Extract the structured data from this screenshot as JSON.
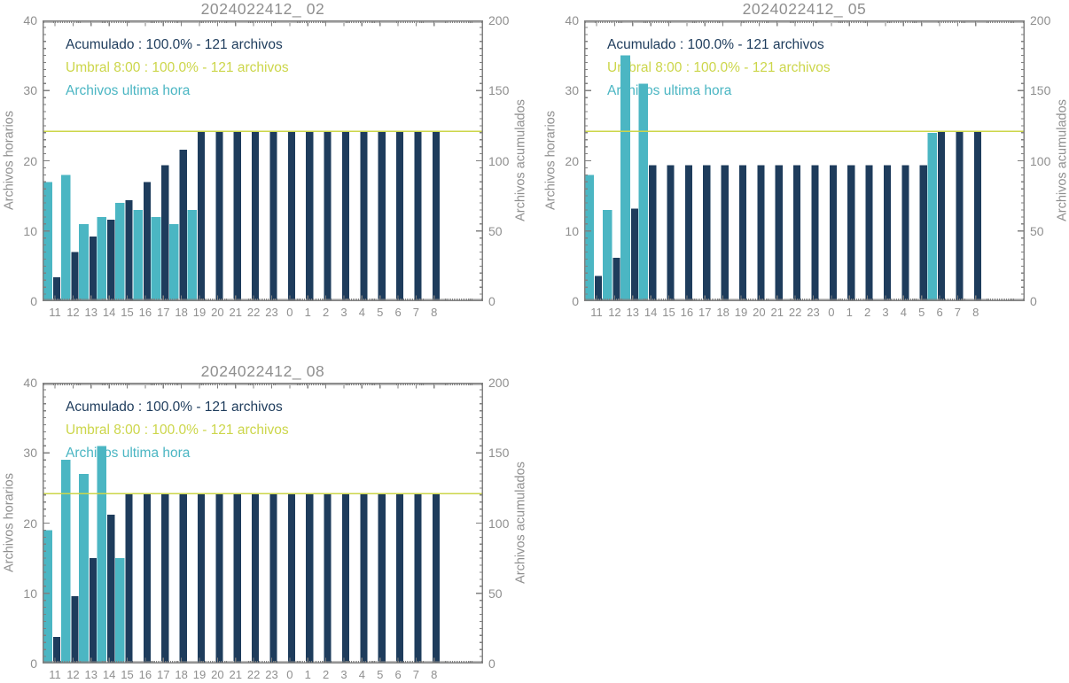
{
  "colors": {
    "navy": "#1e3c5c",
    "teal": "#4bb6c3",
    "threshold": "#ccd64a",
    "tick_text": "#8f8f8f",
    "frame": "#808080"
  },
  "chart_data": [
    {
      "type": "bar",
      "title": "2024022412_ 02",
      "categories": [
        "11",
        "12",
        "13",
        "14",
        "15",
        "16",
        "17",
        "18",
        "19",
        "20",
        "21",
        "22",
        "23",
        "0",
        "1",
        "2",
        "3",
        "4",
        "5",
        "6",
        "7",
        "8"
      ],
      "series": [
        {
          "name": "Archivos ultima hora",
          "axis": "left",
          "color": "teal",
          "values": [
            17,
            18,
            11,
            12,
            14,
            13,
            12,
            11,
            13,
            0,
            0,
            0,
            0,
            0,
            0,
            0,
            0,
            0,
            0,
            0,
            0,
            0
          ]
        },
        {
          "name": "Acumulado",
          "axis": "right",
          "color": "navy",
          "values": [
            17,
            35,
            46,
            58,
            72,
            85,
            97,
            108,
            121,
            121,
            121,
            121,
            121,
            121,
            121,
            121,
            121,
            121,
            121,
            121,
            121,
            121
          ]
        }
      ],
      "threshold": {
        "value": 121,
        "axis": "right"
      },
      "legend": [
        {
          "text": "Acumulado : 100.0% - 121 archivos",
          "color": "navy"
        },
        {
          "text": "Umbral 8:00 : 100.0% - 121 archivos",
          "color": "threshold"
        },
        {
          "text": "Archivos ultima hora",
          "color": "teal"
        }
      ],
      "ylabel_left": "Archivos horarios",
      "ylabel_right": "Archivos acumulados",
      "ylim_left": [
        0,
        40
      ],
      "ylim_right": [
        0,
        200
      ],
      "yticks_left": [
        0,
        10,
        20,
        30,
        40
      ],
      "yticks_right": [
        0,
        50,
        100,
        150,
        200
      ]
    },
    {
      "type": "bar",
      "title": "2024022412_ 05",
      "categories": [
        "11",
        "12",
        "13",
        "14",
        "15",
        "16",
        "17",
        "18",
        "19",
        "20",
        "21",
        "22",
        "23",
        "0",
        "1",
        "2",
        "3",
        "4",
        "5",
        "6",
        "7",
        "8"
      ],
      "series": [
        {
          "name": "Archivos ultima hora",
          "axis": "left",
          "color": "teal",
          "values": [
            18,
            13,
            35,
            31,
            0,
            0,
            0,
            0,
            0,
            0,
            0,
            0,
            0,
            0,
            0,
            0,
            0,
            0,
            0,
            24,
            0,
            0
          ]
        },
        {
          "name": "Acumulado",
          "axis": "right",
          "color": "navy",
          "values": [
            18,
            31,
            66,
            97,
            97,
            97,
            97,
            97,
            97,
            97,
            97,
            97,
            97,
            97,
            97,
            97,
            97,
            97,
            97,
            121,
            121,
            121
          ]
        }
      ],
      "threshold": {
        "value": 121,
        "axis": "right"
      },
      "legend": [
        {
          "text": "Acumulado : 100.0% - 121 archivos",
          "color": "navy"
        },
        {
          "text": "Umbral 8:00 : 100.0% - 121 archivos",
          "color": "threshold"
        },
        {
          "text": "Archivos ultima hora",
          "color": "teal"
        }
      ],
      "ylabel_left": "Archivos horarios",
      "ylabel_right": "Archivos acumulados",
      "ylim_left": [
        0,
        40
      ],
      "ylim_right": [
        0,
        200
      ],
      "yticks_left": [
        0,
        10,
        20,
        30,
        40
      ],
      "yticks_right": [
        0,
        50,
        100,
        150,
        200
      ]
    },
    {
      "type": "bar",
      "title": "2024022412_ 08",
      "categories": [
        "11",
        "12",
        "13",
        "14",
        "15",
        "16",
        "17",
        "18",
        "19",
        "20",
        "21",
        "22",
        "23",
        "0",
        "1",
        "2",
        "3",
        "4",
        "5",
        "6",
        "7",
        "8"
      ],
      "series": [
        {
          "name": "Archivos ultima hora",
          "axis": "left",
          "color": "teal",
          "values": [
            19,
            29,
            27,
            31,
            15,
            0,
            0,
            0,
            0,
            0,
            0,
            0,
            0,
            0,
            0,
            0,
            0,
            0,
            0,
            0,
            0,
            0
          ]
        },
        {
          "name": "Acumulado",
          "axis": "right",
          "color": "navy",
          "values": [
            19,
            48,
            75,
            106,
            121,
            121,
            121,
            121,
            121,
            121,
            121,
            121,
            121,
            121,
            121,
            121,
            121,
            121,
            121,
            121,
            121,
            121
          ]
        }
      ],
      "threshold": {
        "value": 121,
        "axis": "right"
      },
      "legend": [
        {
          "text": "Acumulado : 100.0% - 121 archivos",
          "color": "navy"
        },
        {
          "text": "Umbral 8:00 : 100.0% - 121 archivos",
          "color": "threshold"
        },
        {
          "text": "Archivos ultima hora",
          "color": "teal"
        }
      ],
      "ylabel_left": "Archivos horarios",
      "ylabel_right": "Archivos acumulados",
      "ylim_left": [
        0,
        40
      ],
      "ylim_right": [
        0,
        200
      ],
      "yticks_left": [
        0,
        10,
        20,
        30,
        40
      ],
      "yticks_right": [
        0,
        50,
        100,
        150,
        200
      ]
    }
  ]
}
